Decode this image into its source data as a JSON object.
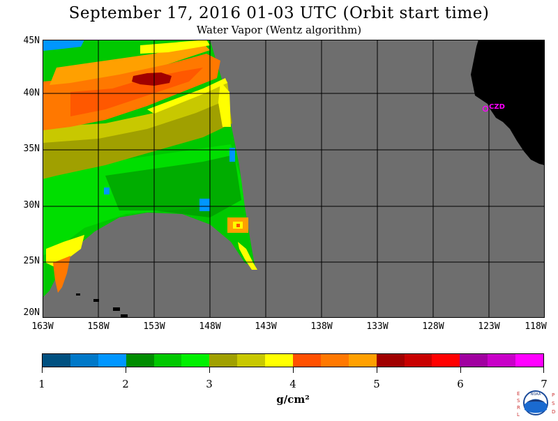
{
  "header": {
    "title": "September 17, 2016  01-03 UTC  (Orbit start time)",
    "subtitle": "Water Vapor (Wentz algorithm)"
  },
  "map": {
    "lat_labels": [
      "45N",
      "40N",
      "35N",
      "30N",
      "25N",
      "20N"
    ],
    "lon_labels": [
      "163W",
      "158W",
      "153W",
      "148W",
      "143W",
      "138W",
      "133W",
      "128W",
      "123W",
      "118W"
    ],
    "station_label": "CZD",
    "colors": {
      "land_missing": "#6e6e6e",
      "landmass": "#000000",
      "station": "#ff00ff",
      "grid": "#000000"
    }
  },
  "colorbar": {
    "tick_labels": [
      "1",
      "2",
      "3",
      "4",
      "5",
      "6",
      "7"
    ],
    "units": "g/cm²",
    "colors": [
      "#005080",
      "#0078c8",
      "#0096ff",
      "#008c00",
      "#00c800",
      "#00f000",
      "#a0a000",
      "#c8c800",
      "#ffff00",
      "#ff5000",
      "#ff7800",
      "#ffa000",
      "#a00000",
      "#c80000",
      "#ff0000",
      "#a000a0",
      "#c800c8",
      "#ff00ff"
    ]
  },
  "logo": {
    "left_letters": "ESRL",
    "right_letters": "PSD",
    "center_text": "NOAA"
  }
}
